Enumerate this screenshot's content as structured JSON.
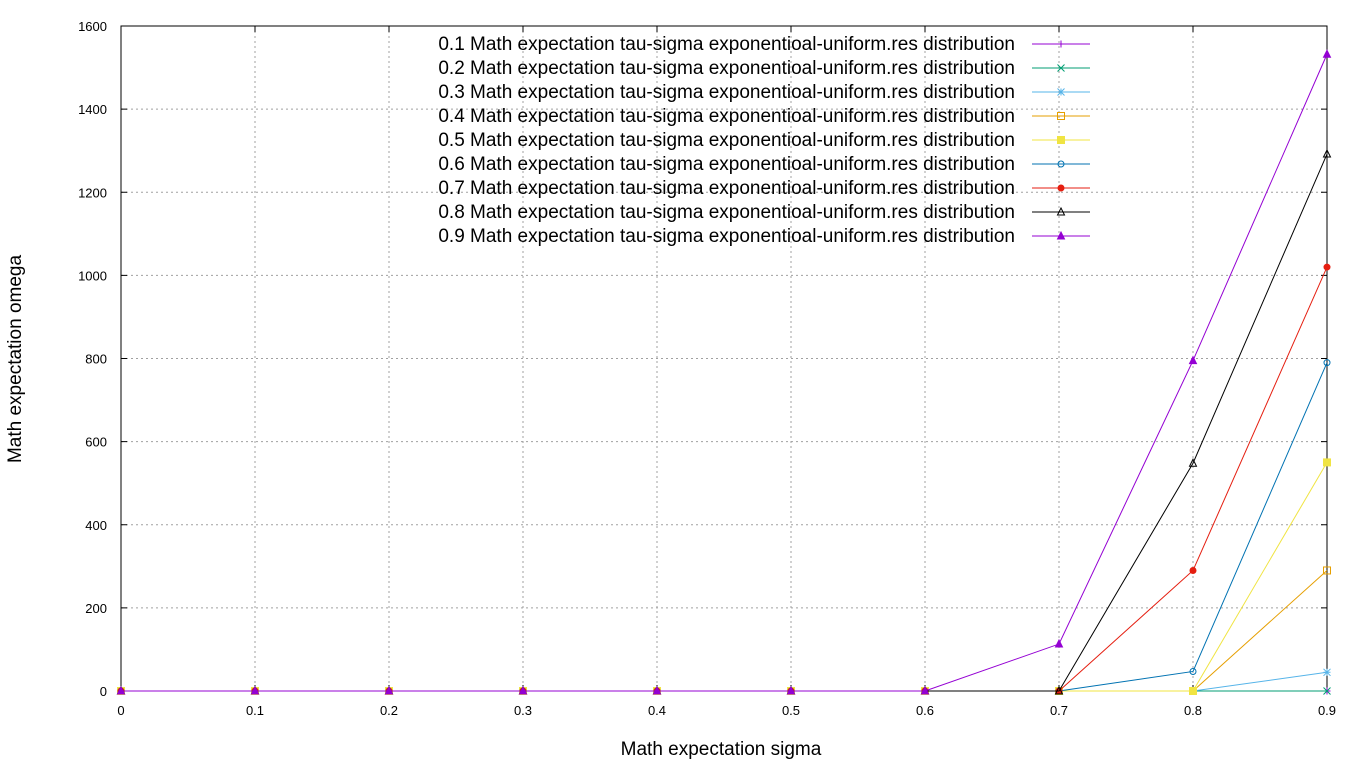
{
  "chart_data": {
    "type": "line",
    "xlabel": "Math expectation sigma",
    "ylabel": "Math expectation omega",
    "xlim": [
      0,
      0.9
    ],
    "ylim": [
      0,
      1600
    ],
    "x_ticks": [
      "0",
      "0.1",
      "0.2",
      "0.3",
      "0.4",
      "0.5",
      "0.6",
      "0.7",
      "0.8",
      "0.9"
    ],
    "y_ticks": [
      "0",
      "200",
      "400",
      "600",
      "800",
      "1000",
      "1200",
      "1400",
      "1600"
    ],
    "grid": true,
    "legend_position": "top-center",
    "series": [
      {
        "name": "0.1 Math expectation tau-sigma exponentioal-uniform.res distribution",
        "color": "#9400d3",
        "marker": "plus",
        "x": [
          0,
          0.1,
          0.2,
          0.3,
          0.4,
          0.5,
          0.6,
          0.7,
          0.8,
          0.9
        ],
        "y": [
          0,
          0,
          0,
          0,
          0,
          0,
          0,
          0,
          0,
          0
        ]
      },
      {
        "name": "0.2 Math expectation tau-sigma exponentioal-uniform.res distribution",
        "color": "#009e73",
        "marker": "cross",
        "x": [
          0,
          0.1,
          0.2,
          0.3,
          0.4,
          0.5,
          0.6,
          0.7,
          0.8,
          0.9
        ],
        "y": [
          0,
          0,
          0,
          0,
          0,
          0,
          0,
          0,
          0,
          0
        ]
      },
      {
        "name": "0.3 Math expectation tau-sigma exponentioal-uniform.res distribution",
        "color": "#56b4e9",
        "marker": "star",
        "x": [
          0,
          0.1,
          0.2,
          0.3,
          0.4,
          0.5,
          0.6,
          0.7,
          0.8,
          0.9
        ],
        "y": [
          0,
          0,
          0,
          0,
          0,
          0,
          0,
          0,
          0,
          45
        ]
      },
      {
        "name": "0.4 Math expectation tau-sigma exponentioal-uniform.res distribution",
        "color": "#e69f00",
        "marker": "square-open",
        "x": [
          0,
          0.1,
          0.2,
          0.3,
          0.4,
          0.5,
          0.6,
          0.7,
          0.8,
          0.9
        ],
        "y": [
          0,
          0,
          0,
          0,
          0,
          0,
          0,
          0,
          0,
          290
        ]
      },
      {
        "name": "0.5 Math expectation tau-sigma exponentioal-uniform.res distribution",
        "color": "#f0e442",
        "marker": "square-filled",
        "x": [
          0,
          0.1,
          0.2,
          0.3,
          0.4,
          0.5,
          0.6,
          0.7,
          0.8,
          0.9
        ],
        "y": [
          0,
          0,
          0,
          0,
          0,
          0,
          0,
          0,
          0,
          550
        ]
      },
      {
        "name": "0.6 Math expectation tau-sigma exponentioal-uniform.res distribution",
        "color": "#0072b2",
        "marker": "circle-open",
        "x": [
          0,
          0.1,
          0.2,
          0.3,
          0.4,
          0.5,
          0.6,
          0.7,
          0.8,
          0.9
        ],
        "y": [
          0,
          0,
          0,
          0,
          0,
          0,
          0,
          0,
          47,
          790
        ]
      },
      {
        "name": "0.7 Math expectation tau-sigma exponentioal-uniform.res distribution",
        "color": "#e51e10",
        "marker": "circle-filled",
        "x": [
          0,
          0.1,
          0.2,
          0.3,
          0.4,
          0.5,
          0.6,
          0.7,
          0.8,
          0.9
        ],
        "y": [
          0,
          0,
          0,
          0,
          0,
          0,
          0,
          0,
          290,
          1020
        ]
      },
      {
        "name": "0.8 Math expectation tau-sigma exponentioal-uniform.res distribution",
        "color": "#000000",
        "marker": "triangle-open",
        "x": [
          0,
          0.1,
          0.2,
          0.3,
          0.4,
          0.5,
          0.6,
          0.7,
          0.8,
          0.9
        ],
        "y": [
          0,
          0,
          0,
          0,
          0,
          0,
          0,
          0,
          548,
          1292
        ]
      },
      {
        "name": "0.9 Math expectation tau-sigma exponentioal-uniform.res distribution",
        "color": "#9400d3",
        "marker": "triangle-filled",
        "x": [
          0,
          0.1,
          0.2,
          0.3,
          0.4,
          0.5,
          0.6,
          0.7,
          0.8,
          0.9
        ],
        "y": [
          0,
          0,
          0,
          0,
          0,
          0,
          0,
          113,
          795,
          1532
        ]
      }
    ]
  }
}
